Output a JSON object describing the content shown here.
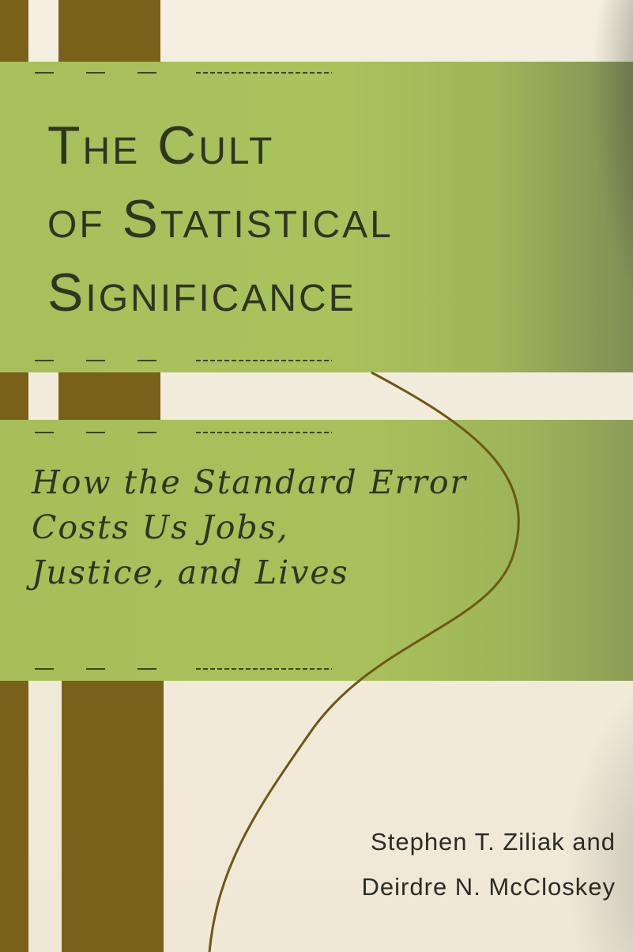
{
  "book": {
    "title_lines": [
      "The Cult",
      "of Statistical",
      "Significance"
    ],
    "subtitle_lines": [
      "How the Standard Error",
      "Costs Us Jobs,",
      "Justice, and Lives"
    ],
    "author_lines": [
      "Stephen T. Ziliak and",
      "Deirdre N. McCloskey"
    ]
  },
  "colors": {
    "green_band": "#a8c05b",
    "brown_stripe": "#7a6119",
    "cream": "#f1ecdd",
    "title_text": "#2f3522",
    "curve_line": "#6e5714"
  }
}
